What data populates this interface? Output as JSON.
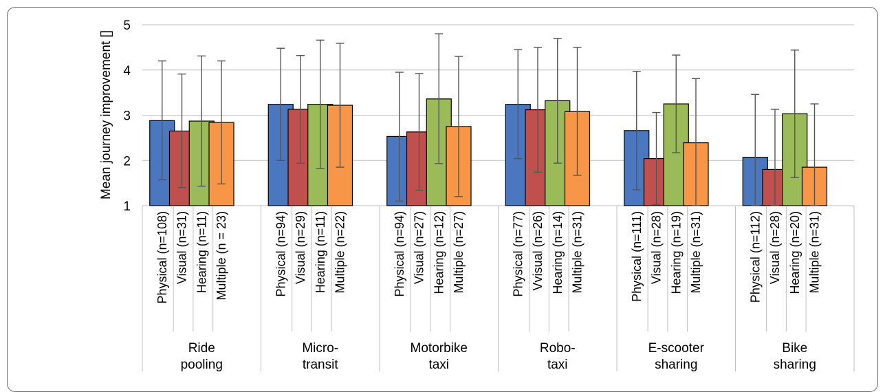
{
  "chart_data": {
    "type": "bar",
    "ylabel": "Mean journey improvement []",
    "xlabel": "",
    "ylim": [
      1,
      5
    ],
    "yticks": [
      "1",
      "2",
      "3",
      "4",
      "5"
    ],
    "grid": true,
    "groups": [
      {
        "label": "Ride\npooling",
        "bars": [
          {
            "label": "Physical (n=108)",
            "value": 2.88,
            "err_low": 1.57,
            "err_high": 4.2
          },
          {
            "label": "Visual (n=31)",
            "value": 2.65,
            "err_low": 1.4,
            "err_high": 3.91
          },
          {
            "label": "Hearing (n=11)",
            "value": 2.87,
            "err_low": 1.43,
            "err_high": 4.31
          },
          {
            "label": "Multiple (n = 23)",
            "value": 2.84,
            "err_low": 1.48,
            "err_high": 4.2
          }
        ]
      },
      {
        "label": "Micro-\ntransit",
        "bars": [
          {
            "label": "Physical (n=94)",
            "value": 3.24,
            "err_low": 2.0,
            "err_high": 4.48
          },
          {
            "label": "Visual (n=29)",
            "value": 3.13,
            "err_low": 1.94,
            "err_high": 4.32
          },
          {
            "label": "Hearing (n=11)",
            "value": 3.24,
            "err_low": 1.82,
            "err_high": 4.66
          },
          {
            "label": "Multiple (n=22)",
            "value": 3.22,
            "err_low": 1.85,
            "err_high": 4.59
          }
        ]
      },
      {
        "label": "Motorbike\ntaxi",
        "bars": [
          {
            "label": "Physical (n=94)",
            "value": 2.53,
            "err_low": 1.1,
            "err_high": 3.95
          },
          {
            "label": "Visual (n=27)",
            "value": 2.63,
            "err_low": 1.34,
            "err_high": 3.92
          },
          {
            "label": "Hearing (n=12)",
            "value": 3.36,
            "err_low": 1.93,
            "err_high": 4.8
          },
          {
            "label": "Multiple (n=27)",
            "value": 2.75,
            "err_low": 1.2,
            "err_high": 4.3
          }
        ]
      },
      {
        "label": "Robo-\ntaxi",
        "bars": [
          {
            "label": "Physical (n=77)",
            "value": 3.24,
            "err_low": 2.04,
            "err_high": 4.45
          },
          {
            "label": "Vvisual (n=26)",
            "value": 3.12,
            "err_low": 1.74,
            "err_high": 4.5
          },
          {
            "label": "Hearing (n=14)",
            "value": 3.32,
            "err_low": 1.94,
            "err_high": 4.7
          },
          {
            "label": "Multiple (n=31)",
            "value": 3.08,
            "err_low": 1.67,
            "err_high": 4.5
          }
        ]
      },
      {
        "label": "E-scooter\nsharing",
        "bars": [
          {
            "label": "Physical (n=111)",
            "value": 2.66,
            "err_low": 1.35,
            "err_high": 3.97
          },
          {
            "label": "Visual (n=28)",
            "value": 2.04,
            "err_low": 1.02,
            "err_high": 3.06
          },
          {
            "label": "Hearing (n=19)",
            "value": 3.25,
            "err_low": 2.17,
            "err_high": 4.33
          },
          {
            "label": "Multiple (n=31)",
            "value": 2.39,
            "err_low": 1.0,
            "err_high": 3.81
          }
        ]
      },
      {
        "label": "Bike\nsharing",
        "bars": [
          {
            "label": "Physical (n=112)",
            "value": 2.07,
            "err_low": 1.0,
            "err_high": 3.46
          },
          {
            "label": "Visual (n=28)",
            "value": 1.8,
            "err_low": 1.0,
            "err_high": 3.13
          },
          {
            "label": "Hearing (n=20)",
            "value": 3.03,
            "err_low": 1.62,
            "err_high": 4.44
          },
          {
            "label": "Multiple (n=31)",
            "value": 1.85,
            "err_low": 1.0,
            "err_high": 3.25
          }
        ]
      }
    ],
    "bar_colors": [
      "#4a77bd",
      "#c0504d",
      "#9bbb59",
      "#f79646"
    ]
  }
}
